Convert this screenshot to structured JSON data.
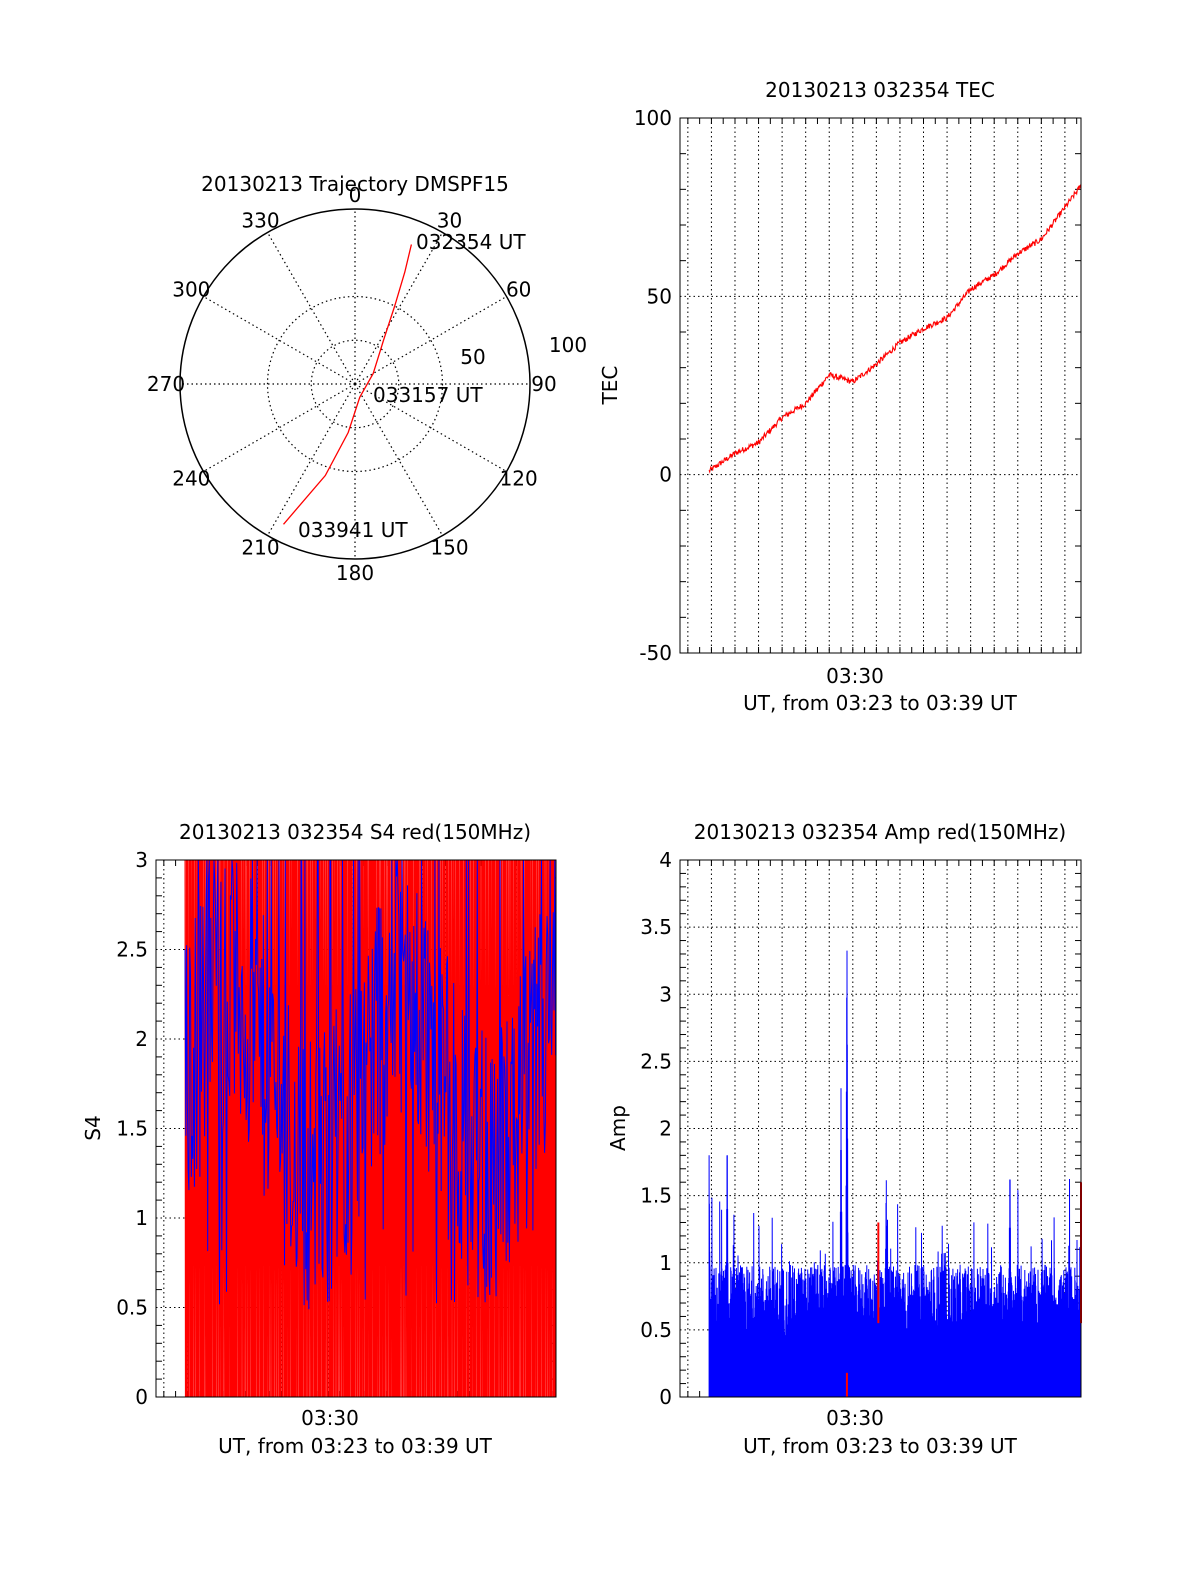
{
  "chart_data": [
    {
      "type": "polar",
      "title": "20130213 Trajectory DMSPF15",
      "angle_ticks": [
        "0",
        "30",
        "60",
        "90",
        "120",
        "150",
        "180",
        "210",
        "240",
        "270",
        "300",
        "330"
      ],
      "radial_ticks": [
        "50",
        "100"
      ],
      "rlim": [
        0,
        100
      ],
      "grid": true,
      "series": [
        {
          "color": "#ff0000",
          "points": [
            {
              "az": 22,
              "r": 86
            },
            {
              "az": 24,
              "r": 70
            },
            {
              "az": 27,
              "r": 50
            },
            {
              "az": 33,
              "r": 30
            },
            {
              "az": 60,
              "r": 12
            },
            {
              "az": 160,
              "r": 8
            },
            {
              "az": 188,
              "r": 28
            },
            {
              "az": 198,
              "r": 55
            },
            {
              "az": 207,
              "r": 90
            }
          ]
        }
      ],
      "annotations": [
        {
          "text": "032354 UT",
          "az": 22,
          "r": 86
        },
        {
          "text": "033157 UT",
          "az": 100,
          "r": 14
        },
        {
          "text": "033941 UT",
          "az": 207,
          "r": 90
        }
      ]
    },
    {
      "type": "line",
      "title": "20130213 032354 TEC",
      "xlabel": "UT, from 03:23 to 03:39 UT",
      "ylabel": "TEC",
      "xlim": [
        "03:22:40",
        "03:39:41"
      ],
      "ylim": [
        -50,
        100
      ],
      "yticks": [
        "-50",
        "0",
        "50",
        "100"
      ],
      "xticks": [
        "03:30"
      ],
      "grid": true,
      "series": [
        {
          "color": "#ff0000",
          "x": [
            "03:23:54",
            "03:25:00",
            "03:26:00",
            "03:27:00",
            "03:28:00",
            "03:29:00",
            "03:30:00",
            "03:31:00",
            "03:32:00",
            "03:33:00",
            "03:34:00",
            "03:35:00",
            "03:36:00",
            "03:37:00",
            "03:38:00",
            "03:39:41"
          ],
          "y": [
            1,
            6,
            9,
            16,
            20,
            28,
            26,
            31,
            37,
            41,
            44,
            52,
            56,
            62,
            66,
            81
          ]
        }
      ]
    },
    {
      "type": "line",
      "title": "20130213 032354 S4 red(150MHz)",
      "xlabel": "UT, from 03:23 to 03:39 UT",
      "ylabel": "S4",
      "xlim": [
        "03:22:40",
        "03:39:41"
      ],
      "ylim": [
        0,
        3
      ],
      "yticks": [
        "0",
        "0.5",
        "1",
        "1.5",
        "2",
        "2.5",
        "3"
      ],
      "xticks": [
        "03:30"
      ],
      "grid": true,
      "series": [
        {
          "name": "",
          "color": "#ff0000",
          "style": "dense-spikes",
          "range": [
            0,
            3
          ]
        },
        {
          "name": "",
          "color": "#0000ff",
          "style": "noisy-line",
          "range": [
            0.35,
            3
          ]
        }
      ]
    },
    {
      "type": "bar",
      "title": "20130213 032354 Amp red(150MHz)",
      "xlabel": "UT, from 03:23 to 03:39 UT",
      "ylabel": "Amp",
      "xlim": [
        "03:22:40",
        "03:39:41"
      ],
      "ylim": [
        0,
        4
      ],
      "yticks": [
        "0",
        "0.5",
        "1",
        "1.5",
        "2",
        "2.5",
        "3",
        "3.5",
        "4"
      ],
      "xticks": [
        "03:30"
      ],
      "grid": true,
      "series": [
        {
          "color": "#0000ff",
          "style": "dense-spikes",
          "peaks": [
            {
              "x": "03:23:54",
              "y": 1.8
            },
            {
              "x": "03:24:40",
              "y": 2.0
            },
            {
              "x": "03:29:30",
              "y": 2.3
            },
            {
              "x": "03:29:45",
              "y": 3.5
            },
            {
              "x": "03:31:25",
              "y": 1.7
            },
            {
              "x": "03:36:40",
              "y": 1.8
            }
          ],
          "baseline": 0.6
        },
        {
          "color": "#ff0000",
          "style": "spikes",
          "peaks": [
            {
              "x": "03:31:05",
              "y": 1.3
            },
            {
              "x": "03:39:41",
              "y": 1.6
            }
          ]
        }
      ]
    }
  ]
}
